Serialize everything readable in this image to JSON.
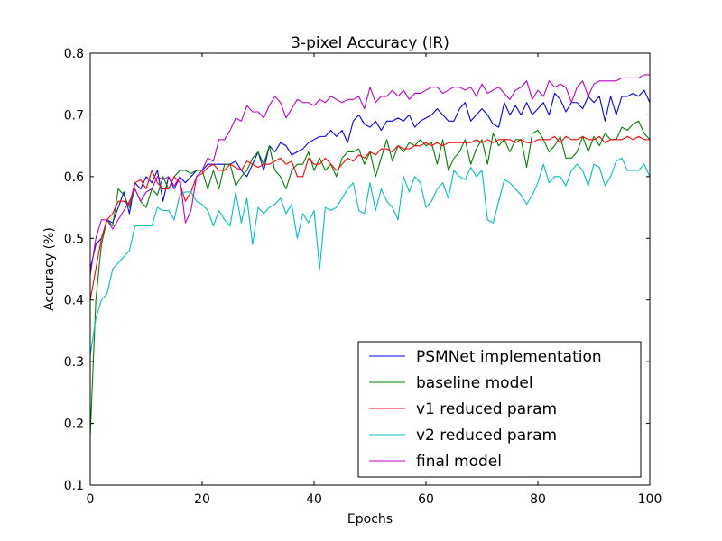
{
  "chart_data": {
    "type": "line",
    "title": "3-pixel Accuracy (IR)",
    "xlabel": "Epochs",
    "ylabel": "Accuracy (%)",
    "xlim": [
      0,
      100
    ],
    "ylim": [
      0.1,
      0.8
    ],
    "xticks": [
      0,
      20,
      40,
      60,
      80,
      100
    ],
    "yticks": [
      0.1,
      0.2,
      0.3,
      0.4,
      0.5,
      0.6,
      0.7,
      0.8
    ],
    "grid": false,
    "legend_position": "lower-right",
    "x_start": 0,
    "x_step": 1,
    "series": [
      {
        "name": "PSMNet implementation",
        "color": "#0000ff",
        "values": [
          0.45,
          0.49,
          0.5,
          0.53,
          0.525,
          0.55,
          0.575,
          0.54,
          0.59,
          0.58,
          0.6,
          0.59,
          0.61,
          0.56,
          0.6,
          0.58,
          0.6,
          0.59,
          0.6,
          0.61,
          0.61,
          0.62,
          0.62,
          0.62,
          0.62,
          0.62,
          0.625,
          0.61,
          0.6,
          0.62,
          0.64,
          0.61,
          0.65,
          0.64,
          0.655,
          0.65,
          0.635,
          0.64,
          0.645,
          0.655,
          0.66,
          0.665,
          0.665,
          0.675,
          0.665,
          0.675,
          0.655,
          0.69,
          0.7,
          0.685,
          0.68,
          0.69,
          0.675,
          0.69,
          0.69,
          0.695,
          0.69,
          0.7,
          0.68,
          0.69,
          0.695,
          0.7,
          0.71,
          0.7,
          0.69,
          0.69,
          0.71,
          0.72,
          0.69,
          0.7,
          0.71,
          0.7,
          0.685,
          0.68,
          0.72,
          0.7,
          0.715,
          0.7,
          0.72,
          0.7,
          0.71,
          0.72,
          0.7,
          0.735,
          0.725,
          0.705,
          0.72,
          0.72,
          0.71,
          0.73,
          0.72,
          0.73,
          0.69,
          0.73,
          0.7,
          0.73,
          0.73,
          0.735,
          0.73,
          0.74,
          0.72
        ]
      },
      {
        "name": "baseline model",
        "color": "#008000",
        "values": [
          0.18,
          0.4,
          0.49,
          0.53,
          0.52,
          0.58,
          0.57,
          0.55,
          0.58,
          0.56,
          0.55,
          0.58,
          0.57,
          0.6,
          0.58,
          0.6,
          0.61,
          0.61,
          0.605,
          0.61,
          0.61,
          0.58,
          0.61,
          0.58,
          0.62,
          0.62,
          0.585,
          0.6,
          0.61,
          0.63,
          0.64,
          0.62,
          0.65,
          0.61,
          0.6,
          0.58,
          0.61,
          0.62,
          0.62,
          0.64,
          0.61,
          0.63,
          0.61,
          0.62,
          0.6,
          0.63,
          0.64,
          0.64,
          0.645,
          0.62,
          0.64,
          0.6,
          0.63,
          0.66,
          0.625,
          0.65,
          0.64,
          0.655,
          0.65,
          0.66,
          0.65,
          0.655,
          0.62,
          0.66,
          0.61,
          0.63,
          0.64,
          0.66,
          0.62,
          0.645,
          0.66,
          0.62,
          0.67,
          0.65,
          0.66,
          0.64,
          0.66,
          0.66,
          0.615,
          0.67,
          0.675,
          0.66,
          0.64,
          0.65,
          0.665,
          0.63,
          0.63,
          0.64,
          0.665,
          0.64,
          0.665,
          0.65,
          0.67,
          0.66,
          0.66,
          0.68,
          0.675,
          0.685,
          0.69,
          0.67,
          0.66
        ]
      },
      {
        "name": "v1 reduced param",
        "color": "#ff0000",
        "values": [
          0.4,
          0.45,
          0.5,
          0.53,
          0.54,
          0.56,
          0.56,
          0.555,
          0.59,
          0.595,
          0.58,
          0.61,
          0.59,
          0.58,
          0.58,
          0.6,
          0.59,
          0.56,
          0.575,
          0.6,
          0.605,
          0.615,
          0.62,
          0.61,
          0.61,
          0.62,
          0.615,
          0.61,
          0.625,
          0.62,
          0.615,
          0.62,
          0.62,
          0.625,
          0.63,
          0.62,
          0.625,
          0.6,
          0.6,
          0.63,
          0.62,
          0.62,
          0.63,
          0.62,
          0.61,
          0.62,
          0.63,
          0.625,
          0.635,
          0.63,
          0.64,
          0.635,
          0.645,
          0.645,
          0.64,
          0.65,
          0.645,
          0.645,
          0.65,
          0.65,
          0.655,
          0.65,
          0.655,
          0.65,
          0.655,
          0.655,
          0.655,
          0.655,
          0.655,
          0.66,
          0.655,
          0.66,
          0.655,
          0.66,
          0.66,
          0.66,
          0.655,
          0.66,
          0.655,
          0.655,
          0.66,
          0.66,
          0.66,
          0.665,
          0.655,
          0.665,
          0.66,
          0.66,
          0.665,
          0.66,
          0.66,
          0.665,
          0.655,
          0.66,
          0.66,
          0.66,
          0.665,
          0.66,
          0.665,
          0.66,
          0.66
        ]
      },
      {
        "name": "v2 reduced param",
        "color": "#00bfbf",
        "values": [
          0.31,
          0.37,
          0.4,
          0.41,
          0.45,
          0.46,
          0.47,
          0.48,
          0.52,
          0.52,
          0.52,
          0.52,
          0.55,
          0.545,
          0.545,
          0.53,
          0.57,
          0.575,
          0.575,
          0.56,
          0.555,
          0.545,
          0.52,
          0.545,
          0.53,
          0.52,
          0.575,
          0.525,
          0.565,
          0.49,
          0.55,
          0.54,
          0.55,
          0.555,
          0.565,
          0.54,
          0.555,
          0.5,
          0.54,
          0.525,
          0.545,
          0.45,
          0.55,
          0.545,
          0.55,
          0.565,
          0.58,
          0.59,
          0.545,
          0.54,
          0.59,
          0.545,
          0.58,
          0.56,
          0.55,
          0.53,
          0.6,
          0.575,
          0.6,
          0.59,
          0.55,
          0.56,
          0.58,
          0.59,
          0.565,
          0.61,
          0.6,
          0.595,
          0.615,
          0.6,
          0.61,
          0.53,
          0.525,
          0.56,
          0.595,
          0.59,
          0.58,
          0.57,
          0.555,
          0.57,
          0.59,
          0.62,
          0.59,
          0.6,
          0.6,
          0.585,
          0.61,
          0.62,
          0.61,
          0.585,
          0.62,
          0.615,
          0.585,
          0.6,
          0.625,
          0.63,
          0.61,
          0.61,
          0.61,
          0.62,
          0.6
        ]
      },
      {
        "name": "final model",
        "color": "#bf00bf",
        "values": [
          0.44,
          0.5,
          0.53,
          0.53,
          0.515,
          0.53,
          0.545,
          0.56,
          0.58,
          0.56,
          0.575,
          0.58,
          0.6,
          0.595,
          0.6,
          0.585,
          0.6,
          0.525,
          0.545,
          0.6,
          0.61,
          0.63,
          0.625,
          0.66,
          0.66,
          0.675,
          0.695,
          0.69,
          0.715,
          0.705,
          0.705,
          0.695,
          0.715,
          0.73,
          0.72,
          0.695,
          0.71,
          0.725,
          0.72,
          0.72,
          0.715,
          0.725,
          0.72,
          0.73,
          0.725,
          0.72,
          0.725,
          0.725,
          0.73,
          0.71,
          0.745,
          0.72,
          0.73,
          0.73,
          0.74,
          0.73,
          0.74,
          0.725,
          0.735,
          0.735,
          0.74,
          0.745,
          0.745,
          0.735,
          0.74,
          0.745,
          0.745,
          0.74,
          0.745,
          0.73,
          0.75,
          0.735,
          0.74,
          0.745,
          0.735,
          0.725,
          0.74,
          0.745,
          0.755,
          0.725,
          0.74,
          0.73,
          0.755,
          0.745,
          0.75,
          0.745,
          0.72,
          0.745,
          0.755,
          0.73,
          0.75,
          0.755,
          0.755,
          0.755,
          0.755,
          0.76,
          0.76,
          0.76,
          0.76,
          0.765,
          0.765
        ]
      }
    ]
  }
}
